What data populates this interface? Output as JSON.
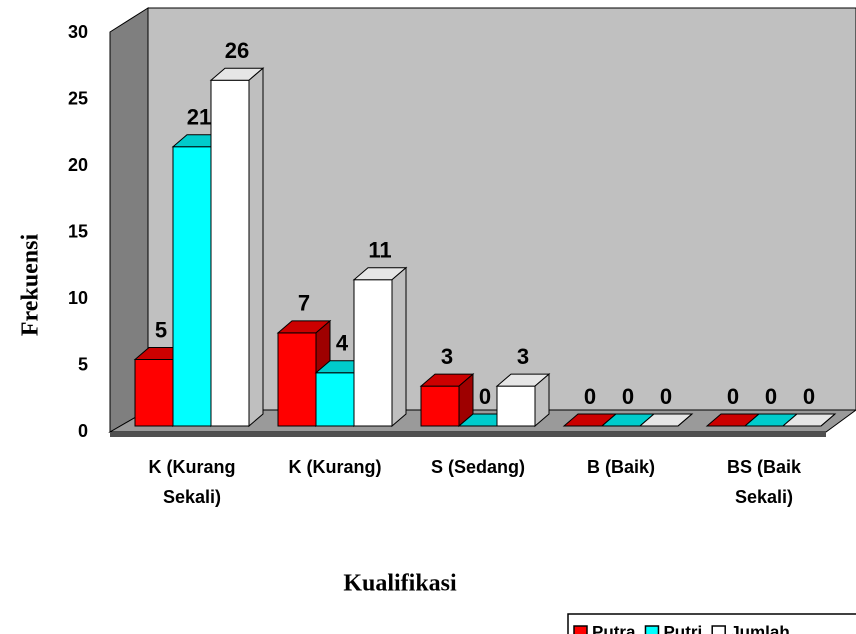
{
  "chart_data": {
    "type": "bar3d",
    "categories": [
      "K (Kurang\nSekali)",
      "K (Kurang)",
      "S (Sedang)",
      "B (Baik)",
      "BS (Baik\nSekali)"
    ],
    "series": [
      {
        "name": "Putra",
        "color": "#ff0000",
        "values": [
          5,
          7,
          3,
          0,
          0
        ]
      },
      {
        "name": "Putri",
        "color": "#00ffff",
        "values": [
          21,
          4,
          0,
          0,
          0
        ]
      },
      {
        "name": "Jumlah",
        "color": "#ffffff",
        "values": [
          26,
          11,
          3,
          0,
          0
        ]
      }
    ],
    "ylim": [
      0,
      30
    ],
    "yticks": [
      0,
      5,
      10,
      15,
      20,
      25,
      30
    ],
    "y_label": "Frekuensi",
    "x_label": "Kualifikasi",
    "legend": "bottom-right"
  }
}
